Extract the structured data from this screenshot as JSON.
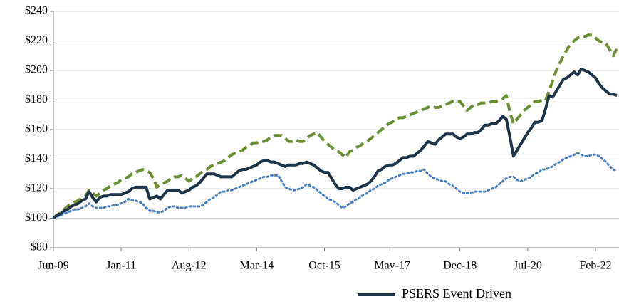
{
  "chart_data": {
    "type": "line",
    "categories": [
      "Jun-09",
      null,
      null,
      null,
      null,
      null,
      null,
      null,
      null,
      null,
      null,
      null,
      null,
      null,
      null,
      null,
      null,
      null,
      null,
      "Jan-11",
      null,
      null,
      null,
      null,
      null,
      null,
      null,
      null,
      null,
      null,
      null,
      null,
      null,
      null,
      null,
      null,
      null,
      null,
      "Aug-12",
      null,
      null,
      null,
      null,
      null,
      null,
      null,
      null,
      null,
      null,
      null,
      null,
      null,
      null,
      null,
      null,
      null,
      null,
      "Mar-14",
      null,
      null,
      null,
      null,
      null,
      null,
      null,
      null,
      null,
      null,
      null,
      null,
      null,
      null,
      null,
      null,
      null,
      null,
      "Oct-15",
      null,
      null,
      null,
      null,
      null,
      null,
      null,
      null,
      null,
      null,
      null,
      null,
      null,
      null,
      null,
      null,
      null,
      null,
      "May-17",
      null,
      null,
      null,
      null,
      null,
      null,
      null,
      null,
      null,
      null,
      null,
      null,
      null,
      null,
      null,
      null,
      null,
      null,
      "Dec-18",
      null,
      null,
      null,
      null,
      null,
      null,
      null,
      null,
      null,
      null,
      null,
      null,
      null,
      null,
      null,
      null,
      null,
      null,
      "Jul-20",
      null,
      null,
      null,
      null,
      null,
      null,
      null,
      null,
      null,
      null,
      null,
      null,
      null,
      null,
      null,
      null,
      null,
      null,
      "Feb-22",
      null,
      null,
      null,
      null,
      null,
      null
    ],
    "series": [
      {
        "name": "PSERS Event Driven",
        "color": "#1f3347",
        "style": "solid",
        "values": [
          100,
          102,
          103,
          105,
          106,
          108,
          109,
          110,
          112,
          113,
          118,
          114,
          111,
          114,
          115,
          115,
          116,
          116,
          116,
          116,
          117,
          118,
          120,
          121,
          121,
          121,
          121,
          113,
          114,
          115,
          113,
          116,
          119,
          119,
          119,
          119,
          117,
          118,
          119,
          121,
          122,
          124,
          127,
          130,
          130,
          130,
          129,
          128,
          128,
          128,
          128,
          130,
          132,
          133,
          133,
          134,
          135,
          136,
          138,
          139,
          139,
          138,
          138,
          137,
          136,
          135,
          136,
          136,
          136,
          137,
          137,
          138,
          137,
          136,
          134,
          132,
          131,
          131,
          127,
          123,
          120,
          120,
          121,
          121,
          119,
          120,
          121,
          122,
          123,
          125,
          128,
          132,
          133,
          135,
          136,
          136,
          137,
          139,
          141,
          141,
          142,
          142,
          144,
          146,
          149,
          152,
          151,
          150,
          153,
          155,
          157,
          157,
          157,
          155,
          154,
          155,
          157,
          157,
          158,
          158,
          160,
          163,
          163,
          164,
          164,
          166,
          169,
          167,
          155,
          142,
          146,
          150,
          154,
          158,
          161,
          165,
          165,
          166,
          174,
          183,
          182,
          186,
          190,
          194,
          195,
          197,
          199,
          197,
          201,
          200,
          199,
          197,
          195,
          191,
          188,
          186,
          184,
          184,
          183
        ]
      },
      {
        "color": "#4a7fc1",
        "style": "dotted",
        "values": [
          100,
          101,
          102,
          103,
          104,
          105,
          106,
          106,
          107,
          108,
          110,
          108,
          107,
          107,
          107,
          108,
          108,
          109,
          109,
          110,
          111,
          113,
          112,
          112,
          111,
          110,
          107,
          105,
          105,
          104,
          104,
          105,
          107,
          108,
          108,
          107,
          107,
          107,
          108,
          108,
          108,
          108,
          109,
          111,
          113,
          114,
          116,
          118,
          118,
          119,
          119,
          120,
          121,
          122,
          123,
          124,
          125,
          126,
          127,
          128,
          128,
          129,
          129,
          129,
          125,
          121,
          120,
          119,
          119,
          120,
          121,
          123,
          122,
          121,
          119,
          117,
          115,
          113,
          112,
          111,
          109,
          107,
          108,
          110,
          111,
          113,
          114,
          116,
          117,
          119,
          120,
          122,
          123,
          124,
          126,
          127,
          128,
          129,
          130,
          130,
          131,
          131,
          132,
          132,
          133,
          130,
          128,
          127,
          126,
          125,
          125,
          123,
          122,
          120,
          118,
          117,
          117,
          117,
          118,
          118,
          118,
          118,
          119,
          120,
          121,
          123,
          125,
          127,
          128,
          128,
          126,
          125,
          126,
          127,
          128,
          130,
          131,
          133,
          133,
          134,
          135,
          137,
          138,
          140,
          141,
          142,
          143,
          144,
          143,
          142,
          142,
          143,
          143,
          142,
          140,
          138,
          135,
          133,
          132
        ]
      },
      {
        "color": "#6b8e32",
        "style": "dashed",
        "values": [
          100,
          102,
          104,
          106,
          108,
          110,
          111,
          112,
          114,
          115,
          119,
          117,
          115,
          117,
          119,
          120,
          122,
          123,
          124,
          126,
          127,
          128,
          130,
          131,
          132,
          133,
          132,
          131,
          127,
          121,
          123,
          124,
          125,
          127,
          128,
          128,
          129,
          127,
          125,
          127,
          128,
          130,
          132,
          133,
          135,
          136,
          137,
          138,
          139,
          141,
          143,
          144,
          145,
          146,
          148,
          149,
          151,
          151,
          152,
          152,
          153,
          155,
          156,
          156,
          156,
          154,
          152,
          152,
          153,
          152,
          152,
          154,
          156,
          157,
          158,
          155,
          152,
          150,
          148,
          146,
          145,
          143,
          141,
          145,
          146,
          148,
          149,
          151,
          152,
          154,
          156,
          158,
          160,
          162,
          164,
          165,
          167,
          168,
          168,
          169,
          170,
          171,
          172,
          173,
          174,
          175,
          176,
          175,
          175,
          176,
          177,
          178,
          179,
          179,
          179,
          176,
          173,
          175,
          177,
          177,
          178,
          178,
          178,
          179,
          179,
          180,
          181,
          183,
          172,
          164,
          167,
          170,
          173,
          175,
          177,
          179,
          179,
          180,
          180,
          186,
          193,
          200,
          205,
          210,
          214,
          218,
          220,
          222,
          223,
          223,
          224,
          224,
          222,
          220,
          219,
          218,
          214,
          210,
          215
        ]
      }
    ],
    "ylim": [
      80,
      240
    ],
    "yticks": [
      {
        "value": 80,
        "label": "$80"
      },
      {
        "value": 100,
        "label": "$100"
      },
      {
        "value": 120,
        "label": "$120"
      },
      {
        "value": 140,
        "label": "$140"
      },
      {
        "value": 160,
        "label": "$160"
      },
      {
        "value": 180,
        "label": "$180"
      },
      {
        "value": 200,
        "label": "$200"
      },
      {
        "value": 220,
        "label": "$220"
      },
      {
        "value": 240,
        "label": "$240"
      }
    ],
    "grid": true
  }
}
